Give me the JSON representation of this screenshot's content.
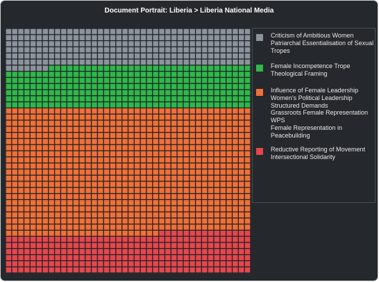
{
  "title": "Document Portrait: Liberia > Liberia National Media",
  "legend": [
    {
      "color": "#8b939c",
      "lines": [
        "Criticism of Ambitious Women",
        "Patriarchal Essentialisation of Sexual",
        "Tropes"
      ]
    },
    {
      "color": "#2fb84a",
      "lines": [
        "Female Incompetence Trope",
        "Theological Framing"
      ]
    },
    {
      "color": "#f07038",
      "lines": [
        "Influence of Female Leadership",
        "Women's Political Leadership",
        "Structured Demands",
        "Grassroots Female Representation",
        "WPS",
        "Female Representation in",
        "Peacebuilding"
      ]
    },
    {
      "color": "#e5474d",
      "lines": [
        "Reductive Reporting of Movement",
        "Intersectional Solidarity"
      ]
    }
  ],
  "chart_data": {
    "type": "waffle",
    "title": "Document Portrait: Liberia > Liberia National Media",
    "grid": {
      "columns": 40,
      "rows": 40,
      "total_cells": 1600
    },
    "fill_order": "row-major from top-left",
    "categories": [
      "Criticism of Ambitious Women / Patriarchal Essentialisation of Sexual Tropes",
      "Female Incompetence Trope / Theological Framing",
      "Influence of Female Leadership / Women's Political Leadership / Structured Demands / Grassroots Female Representation / WPS / Female Representation in Peacebuilding",
      "Reductive Reporting of Movement / Intersectional Solidarity"
    ],
    "values": [
      247,
      273,
      825,
      255
    ],
    "colors": [
      "#8b939c",
      "#2fb84a",
      "#f07038",
      "#e5474d"
    ]
  }
}
